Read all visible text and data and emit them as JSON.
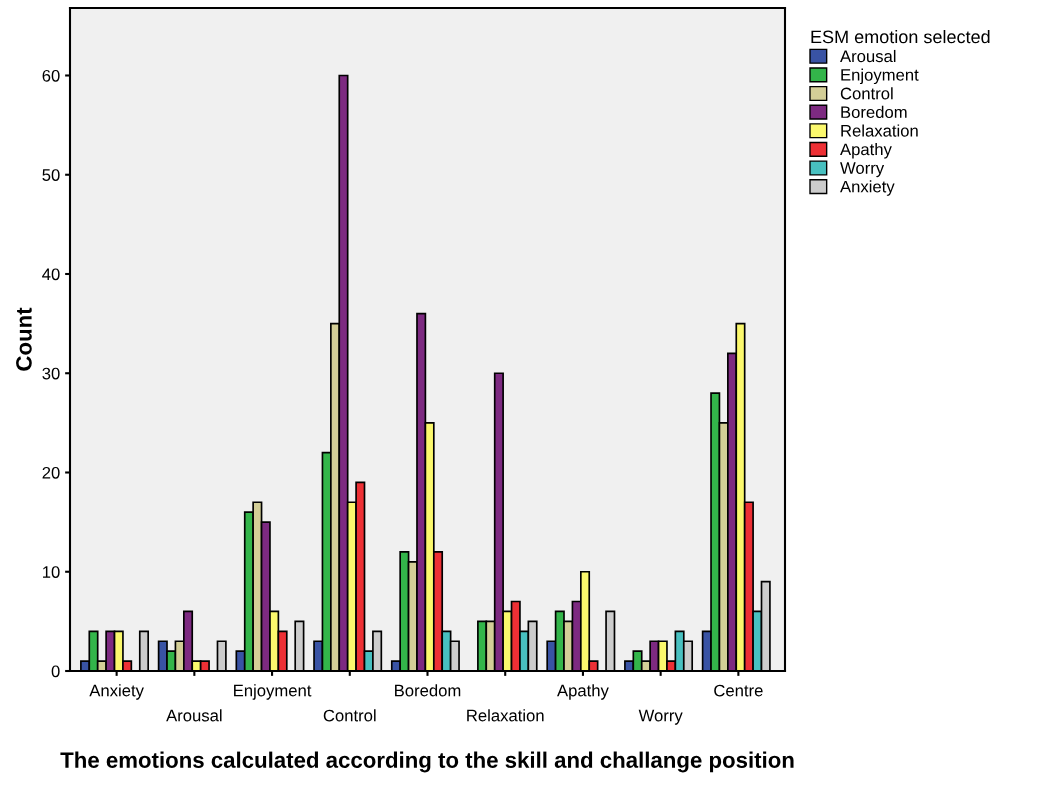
{
  "chart_data": {
    "type": "bar",
    "xlabel": "The emotions calculated according to the skill and challange position",
    "ylabel": "Count",
    "legend_title": "ESM emotion selected",
    "categories": [
      "Anxiety",
      "Arousal",
      "Enjoyment",
      "Control",
      "Boredom",
      "Relaxation",
      "Apathy",
      "Worry",
      "Centre"
    ],
    "series": [
      {
        "name": "Arousal",
        "color": "#3953a4",
        "values": [
          1,
          3,
          2,
          3,
          1,
          0,
          3,
          1,
          4
        ]
      },
      {
        "name": "Enjoyment",
        "color": "#33b54a",
        "values": [
          4,
          2,
          16,
          22,
          12,
          5,
          6,
          2,
          28
        ]
      },
      {
        "name": "Control",
        "color": "#d3ce97",
        "values": [
          1,
          3,
          17,
          35,
          11,
          5,
          5,
          1,
          25
        ]
      },
      {
        "name": "Boredom",
        "color": "#7d2a81",
        "values": [
          4,
          6,
          15,
          60,
          36,
          30,
          7,
          3,
          32
        ]
      },
      {
        "name": "Relaxation",
        "color": "#fbf86d",
        "values": [
          4,
          1,
          6,
          17,
          25,
          6,
          10,
          3,
          35
        ]
      },
      {
        "name": "Apathy",
        "color": "#ed3035",
        "values": [
          1,
          1,
          4,
          19,
          12,
          7,
          1,
          1,
          17
        ]
      },
      {
        "name": "Worry",
        "color": "#48c0c0",
        "values": [
          0,
          0,
          0,
          2,
          4,
          4,
          0,
          4,
          6
        ]
      },
      {
        "name": "Anxiety",
        "color": "#cccccc",
        "values": [
          4,
          3,
          5,
          4,
          3,
          5,
          6,
          3,
          9
        ]
      }
    ],
    "ylim": [
      0,
      66.8
    ],
    "yticks": [
      0,
      10,
      20,
      30,
      40,
      50,
      60
    ],
    "grid": false,
    "legend": "top right"
  }
}
